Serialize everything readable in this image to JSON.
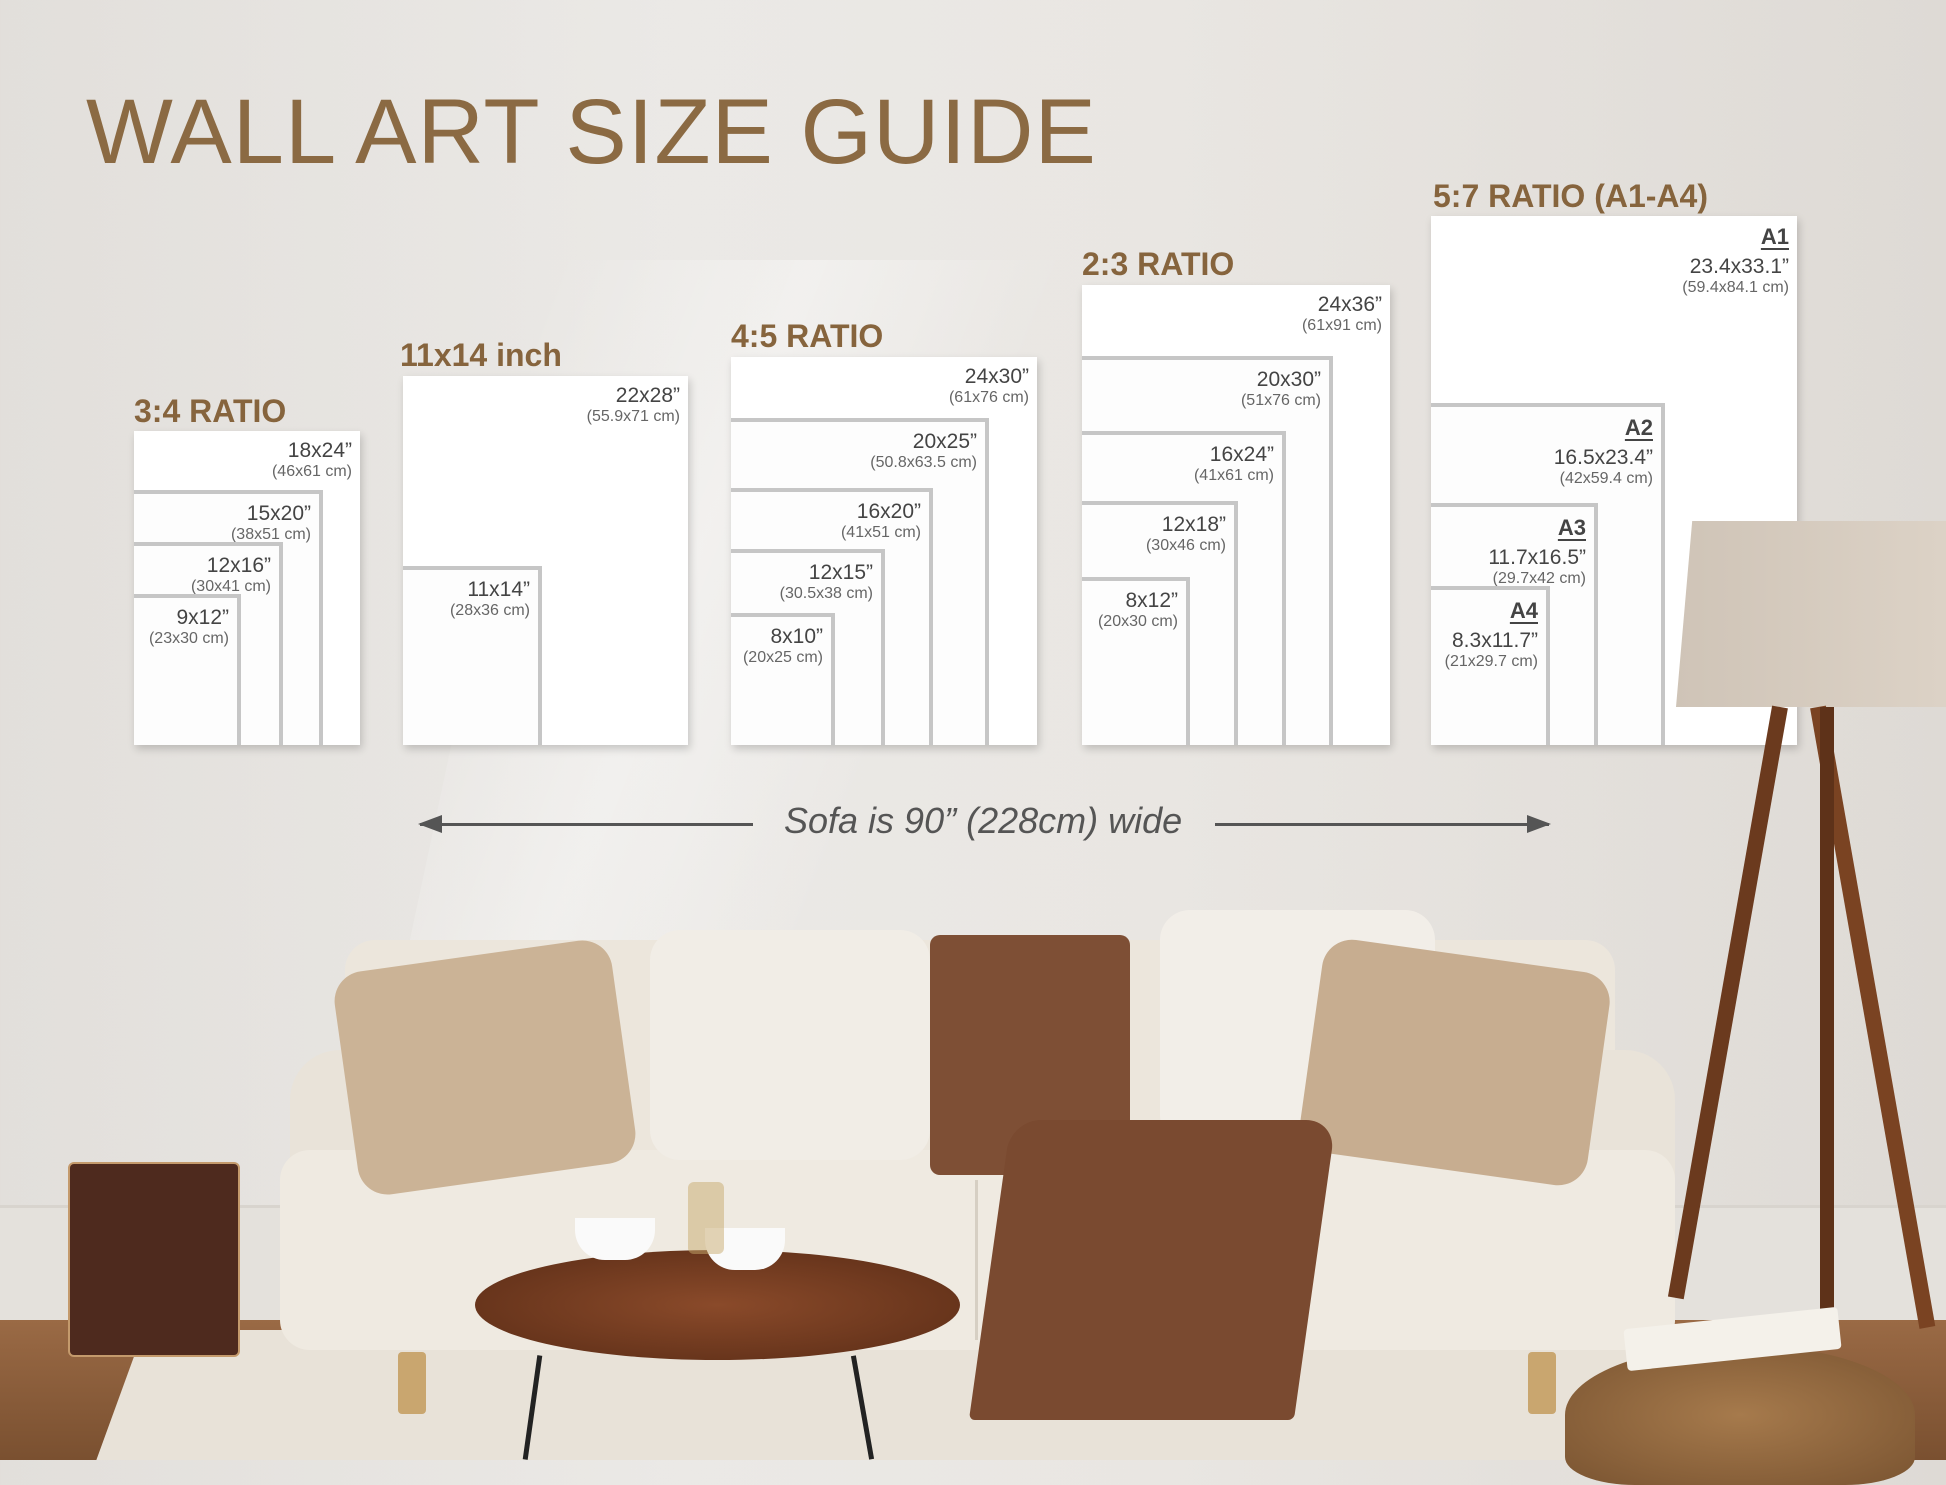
{
  "title": "WALL ART SIZE GUIDE",
  "groups": [
    {
      "label": "3:4 RATIO",
      "sizes": [
        {
          "inches": "18x24”",
          "cm": "(46x61 cm)"
        },
        {
          "inches": "15x20”",
          "cm": "(38x51 cm)"
        },
        {
          "inches": "12x16”",
          "cm": "(30x41 cm)"
        },
        {
          "inches": "9x12”",
          "cm": "(23x30 cm)"
        }
      ]
    },
    {
      "label": "11x14 inch",
      "sizes": [
        {
          "inches": "22x28”",
          "cm": "(55.9x71 cm)"
        },
        {
          "inches": "11x14”",
          "cm": "(28x36 cm)"
        }
      ]
    },
    {
      "label": "4:5 RATIO",
      "sizes": [
        {
          "inches": "24x30”",
          "cm": "(61x76 cm)"
        },
        {
          "inches": "20x25”",
          "cm": "(50.8x63.5 cm)"
        },
        {
          "inches": "16x20”",
          "cm": "(41x51 cm)"
        },
        {
          "inches": "12x15”",
          "cm": "(30.5x38 cm)"
        },
        {
          "inches": "8x10”",
          "cm": "(20x25 cm)"
        }
      ]
    },
    {
      "label": "2:3 RATIO",
      "sizes": [
        {
          "inches": "24x36”",
          "cm": "(61x91 cm)"
        },
        {
          "inches": "20x30”",
          "cm": "(51x76 cm)"
        },
        {
          "inches": "16x24”",
          "cm": "(41x61 cm)"
        },
        {
          "inches": "12x18”",
          "cm": "(30x46 cm)"
        },
        {
          "inches": "8x12”",
          "cm": "(20x30 cm)"
        }
      ]
    },
    {
      "label": "5:7 RATIO (A1-A4)",
      "sizes": [
        {
          "name": "A1",
          "inches": "23.4x33.1”",
          "cm": "(59.4x84.1 cm)"
        },
        {
          "name": "A2",
          "inches": "16.5x23.4”",
          "cm": "(42x59.4 cm)"
        },
        {
          "name": "A3",
          "inches": "11.7x16.5”",
          "cm": "(29.7x42 cm)"
        },
        {
          "name": "A4",
          "inches": "8.3x11.7”",
          "cm": "(21x29.7 cm)"
        }
      ]
    }
  ],
  "sofa_note": "Sofa is 90” (228cm) wide",
  "colors": {
    "title": "#8b6a43",
    "wall": "#e6e3df",
    "frame_border": "#c6c6c6"
  }
}
